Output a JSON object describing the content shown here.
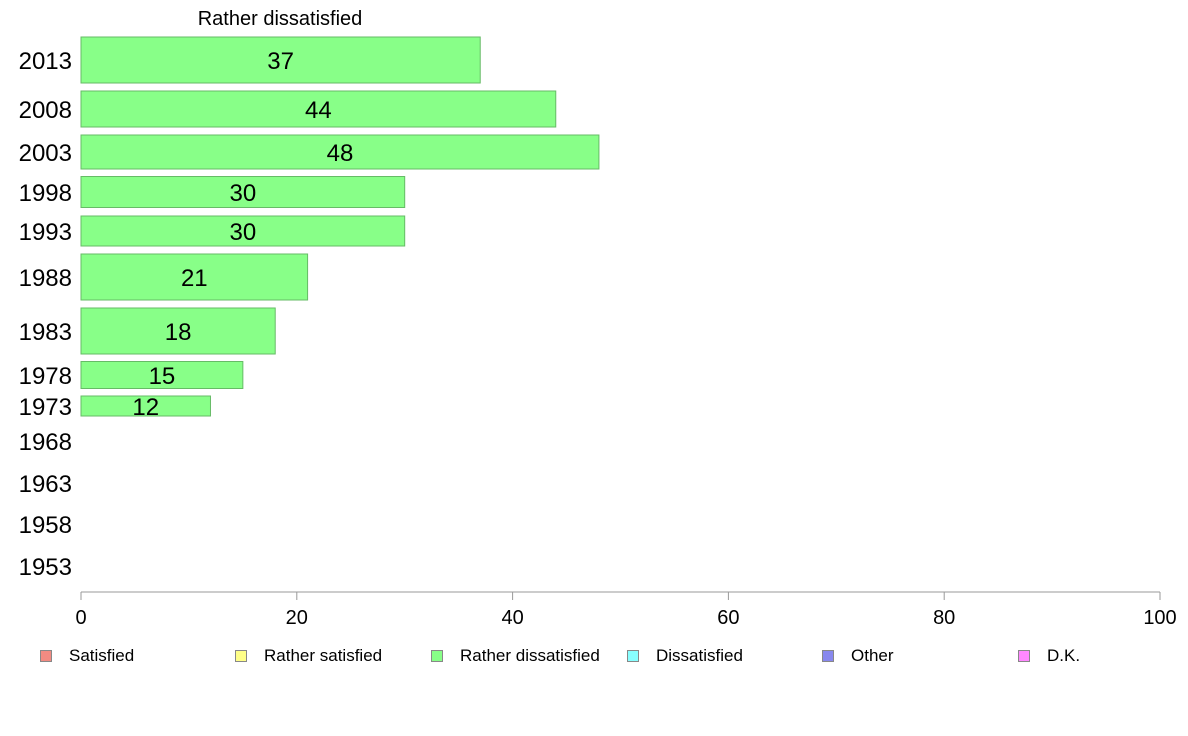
{
  "chart_data": {
    "type": "bar",
    "orientation": "horizontal",
    "title": "Rather dissatisfied",
    "categories": [
      "2013",
      "2008",
      "2003",
      "1998",
      "1993",
      "1988",
      "1983",
      "1978",
      "1973",
      "1968",
      "1963",
      "1958",
      "1953"
    ],
    "values": [
      37,
      44,
      48,
      30,
      30,
      21,
      18,
      15,
      12,
      null,
      null,
      null,
      null
    ],
    "data_labels": [
      "37",
      "44",
      "48",
      "30",
      "30",
      "21",
      "18",
      "15",
      "12",
      "",
      "",
      "",
      ""
    ],
    "xlim": [
      0,
      100
    ],
    "x_ticks": [
      "0",
      "20",
      "40",
      "60",
      "80",
      "100"
    ],
    "bar_color": "#88ff88",
    "bar_edge_color": "#66bb66",
    "grid": false,
    "legend_position": "bottom",
    "legend": [
      {
        "label": "Satisfied",
        "color": "#f28b82"
      },
      {
        "label": "Rather satisfied",
        "color": "#ffff88"
      },
      {
        "label": "Rather dissatisfied",
        "color": "#88ff88"
      },
      {
        "label": "Dissatisfied",
        "color": "#88ffff"
      },
      {
        "label": "Other",
        "color": "#8888ee"
      },
      {
        "label": "D.K.",
        "color": "#ff88ff"
      }
    ]
  }
}
